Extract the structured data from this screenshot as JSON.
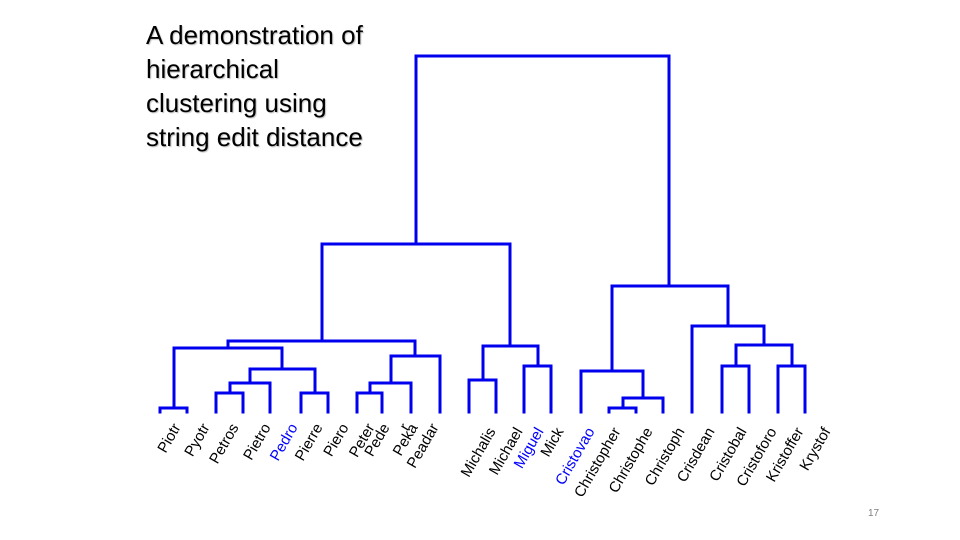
{
  "slide": {
    "title_lines": [
      "A demonstration of",
      "hierarchical",
      "clustering using",
      "string edit distance"
    ],
    "page_number": "17"
  },
  "colors": {
    "tree": "#0000ee",
    "label_default": "#000000",
    "label_highlight": "#0000ff"
  },
  "dendrogram": {
    "leaves": [
      {
        "label": "Piotr",
        "highlight": false
      },
      {
        "label": "Pyotr",
        "highlight": false
      },
      {
        "label": "Petros",
        "highlight": false
      },
      {
        "label": "Pietro",
        "highlight": false
      },
      {
        "label": "Pedro",
        "highlight": true
      },
      {
        "label": "Pierre",
        "highlight": false
      },
      {
        "label": "Piero",
        "highlight": false
      },
      {
        "label": "Peter",
        "highlight": false
      },
      {
        "label": "Pede",
        "highlight": false
      },
      {
        "label": "r",
        "highlight": false
      },
      {
        "label": "Peka",
        "highlight": false
      },
      {
        "label": "Peadar",
        "highlight": false
      },
      {
        "label": "Michalis",
        "highlight": false
      },
      {
        "label": "Michael",
        "highlight": false
      },
      {
        "label": "Miguel",
        "highlight": true
      },
      {
        "label": "Mick",
        "highlight": false
      },
      {
        "label": "Cristovao",
        "highlight": true
      },
      {
        "label": "Christopher",
        "highlight": false
      },
      {
        "label": "Christophe",
        "highlight": false
      },
      {
        "label": "Christoph",
        "highlight": false
      },
      {
        "label": "Crisdean",
        "highlight": false
      },
      {
        "label": "Cristobal",
        "highlight": false
      },
      {
        "label": "Cristoforo",
        "highlight": false
      },
      {
        "label": "Kristoffer",
        "highlight": false
      },
      {
        "label": "Krystof",
        "highlight": false
      }
    ]
  }
}
